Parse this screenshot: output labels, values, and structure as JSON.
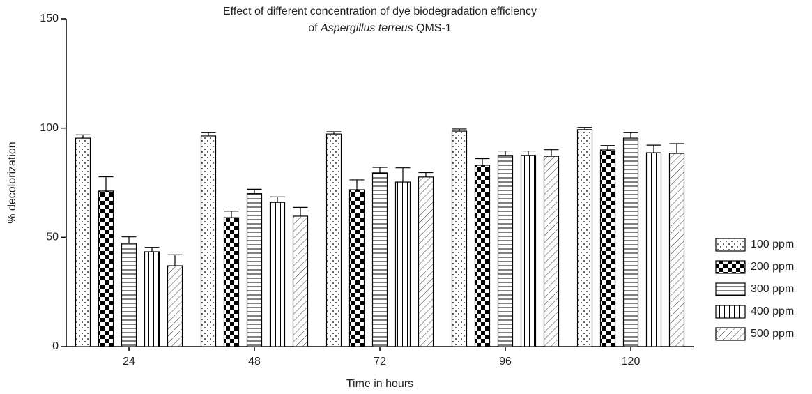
{
  "chart_data": {
    "type": "bar",
    "title": "Effect of different concentration of dye biodegradation efficiency",
    "title_line2": {
      "prefix": "of",
      "organism": "Aspergillus terreus",
      "strain": "QMS-1"
    },
    "xlabel": "Time in hours",
    "ylabel": "% decolorization",
    "categories": [
      "24",
      "48",
      "72",
      "96",
      "120"
    ],
    "ylim": [
      0,
      150
    ],
    "yticks": [
      0,
      50,
      100,
      150
    ],
    "legend": "right",
    "series": [
      {
        "name": "100 ppm",
        "color": "#000000",
        "pattern": "dots",
        "values": [
          95.4,
          96.4,
          97.3,
          98.6,
          99.3
        ],
        "errors": [
          1.5,
          1.5,
          1,
          1,
          1
        ]
      },
      {
        "name": "200 ppm",
        "color": "#000000",
        "pattern": "checker",
        "values": [
          71.2,
          59,
          71.8,
          83,
          90
        ],
        "errors": [
          6.5,
          3,
          4.5,
          3,
          2
        ]
      },
      {
        "name": "300 ppm",
        "color": "#000000",
        "pattern": "hlines",
        "values": [
          47.2,
          70,
          79.5,
          87.5,
          95.4
        ],
        "errors": [
          3,
          2,
          2.5,
          2,
          2.5
        ]
      },
      {
        "name": "400 ppm",
        "color": "#000000",
        "pattern": "vlines",
        "values": [
          43.4,
          66,
          75.3,
          87.5,
          88.7
        ],
        "errors": [
          2,
          2.5,
          6.5,
          2,
          3.5
        ]
      },
      {
        "name": "500 ppm",
        "color": "#000000",
        "pattern": "diagonal",
        "values": [
          37,
          59.7,
          77.6,
          87.1,
          88.4
        ],
        "errors": [
          5,
          4,
          2,
          3,
          4.5
        ]
      }
    ]
  }
}
